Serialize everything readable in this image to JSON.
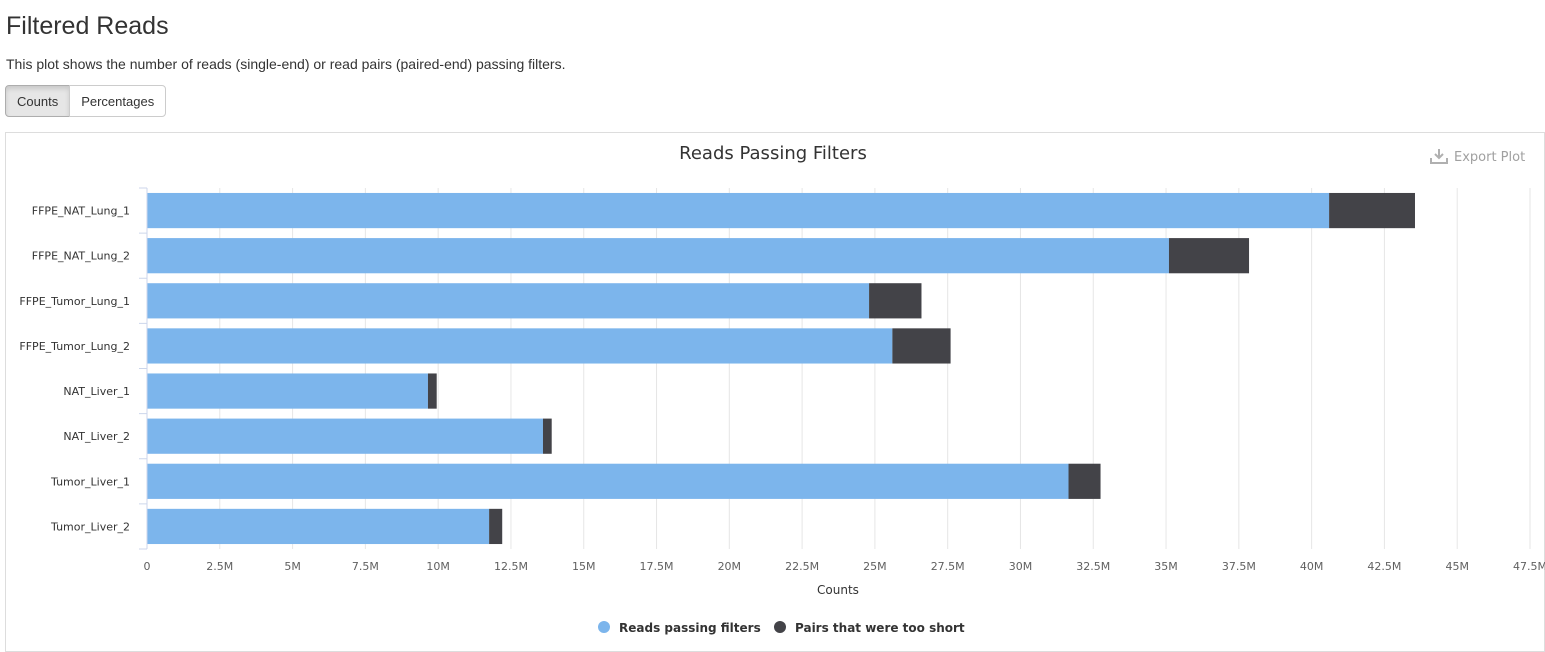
{
  "page": {
    "title": "Filtered Reads",
    "description": "This plot shows the number of reads (single-end) or read pairs (paired-end) passing filters."
  },
  "toggle": {
    "counts_label": "Counts",
    "percentages_label": "Percentages",
    "active": "Counts"
  },
  "export": {
    "label": "Export Plot",
    "icon": "download-icon"
  },
  "colors": {
    "passing": "#7cb5ec",
    "too_short": "#434348",
    "grid": "#e6e6e6",
    "axis": "#ccd6eb"
  },
  "chart_data": {
    "type": "bar",
    "orientation": "horizontal",
    "stacked": true,
    "title": "Reads Passing Filters",
    "xlabel": "Counts",
    "ylabel": "",
    "xlim": [
      0,
      47500000
    ],
    "tick_values": [
      0,
      2500000,
      5000000,
      7500000,
      10000000,
      12500000,
      15000000,
      17500000,
      20000000,
      22500000,
      25000000,
      27500000,
      30000000,
      32500000,
      35000000,
      37500000,
      40000000,
      42500000,
      45000000,
      47500000
    ],
    "tick_labels": [
      "0",
      "2.5M",
      "5M",
      "7.5M",
      "10M",
      "12.5M",
      "15M",
      "17.5M",
      "20M",
      "22.5M",
      "25M",
      "27.5M",
      "30M",
      "32.5M",
      "35M",
      "37.5M",
      "40M",
      "42.5M",
      "45M",
      "47.5M"
    ],
    "categories": [
      "FFPE_NAT_Lung_1",
      "FFPE_NAT_Lung_2",
      "FFPE_Tumor_Lung_1",
      "FFPE_Tumor_Lung_2",
      "NAT_Liver_1",
      "NAT_Liver_2",
      "Tumor_Liver_1",
      "Tumor_Liver_2"
    ],
    "series": [
      {
        "name": "Reads passing filters",
        "color": "#7cb5ec",
        "values": [
          40600000,
          35100000,
          24800000,
          25600000,
          9650000,
          13600000,
          31650000,
          11750000
        ]
      },
      {
        "name": "Pairs that were too short",
        "color": "#434348",
        "values": [
          2950000,
          2750000,
          1800000,
          2000000,
          300000,
          300000,
          1100000,
          450000
        ]
      }
    ],
    "legend_position": "bottom-center",
    "grid": true
  }
}
